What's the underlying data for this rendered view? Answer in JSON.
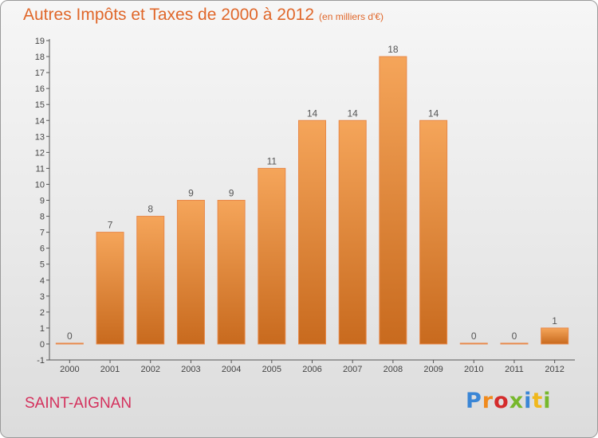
{
  "title": "Autres Impôts et Taxes de 2000 à 2012",
  "unit": "(en milliers d'€)",
  "town": "SAINT-AIGNAN",
  "logo": [
    "P",
    "r",
    "o",
    "x",
    "i",
    "t",
    "i"
  ],
  "colors": {
    "bar_top": "#f5a55a",
    "bar_bottom": "#c86a1e",
    "bar_edge": "#e8894a",
    "title": "#e0672a",
    "town": "#d4305c"
  },
  "chart_data": {
    "type": "bar",
    "title": "Autres Impôts et Taxes de 2000 à 2012",
    "subtitle": "(en milliers d'€)",
    "categories": [
      "2000",
      "2001",
      "2002",
      "2003",
      "2004",
      "2005",
      "2006",
      "2007",
      "2008",
      "2009",
      "2010",
      "2011",
      "2012"
    ],
    "values": [
      0,
      7,
      8,
      9,
      9,
      11,
      14,
      14,
      18,
      14,
      0,
      0,
      1
    ],
    "ylim": [
      -1,
      19
    ],
    "y_ticks": [
      -1,
      0,
      1,
      2,
      3,
      4,
      5,
      6,
      7,
      8,
      9,
      10,
      11,
      12,
      13,
      14,
      15,
      16,
      17,
      18,
      19
    ],
    "xlabel": "",
    "ylabel": "",
    "grid": false
  }
}
